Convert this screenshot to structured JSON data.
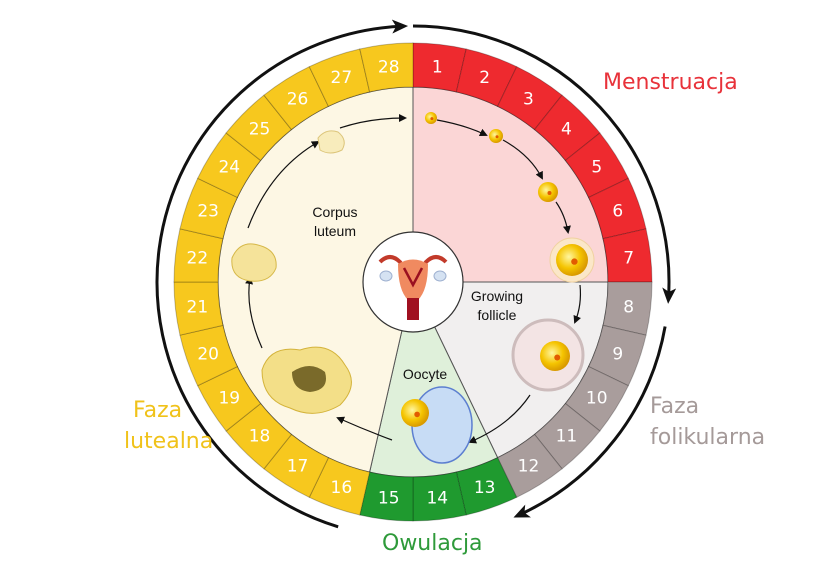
{
  "days": [
    "1",
    "2",
    "3",
    "4",
    "5",
    "6",
    "7",
    "8",
    "9",
    "10",
    "11",
    "12",
    "13",
    "14",
    "15",
    "16",
    "17",
    "18",
    "19",
    "20",
    "21",
    "22",
    "23",
    "24",
    "25",
    "26",
    "27",
    "28"
  ],
  "phases": [
    {
      "name": "Menstruacja",
      "from": 1,
      "to": 7,
      "ring_color": "#ee2a2f",
      "fill_color": "#fbd6d6",
      "label_color": "#e8323a"
    },
    {
      "name": "Faza folikularna",
      "from": 8,
      "to": 12,
      "ring_color": "#a99d9c",
      "fill_color": "#f1efef",
      "label_color": "#a59a99"
    },
    {
      "name": "Owulacja",
      "from": 13,
      "to": 15,
      "ring_color": "#1f9a2f",
      "fill_color": "#dff0da",
      "label_color": "#2e9a3a"
    },
    {
      "name": "Faza lutealna",
      "from": 16,
      "to": 28,
      "ring_color": "#f7c81e",
      "fill_color": "#fdf7e4",
      "label_color": "#f0c21a"
    }
  ],
  "labels": {
    "menstruacja": "Menstruacja",
    "faza_folikularna_1": "Faza",
    "faza_folikularna_2": "folikularna",
    "owulacja": "Owulacja",
    "faza_lutealna_1": "Faza",
    "faza_lutealna_2": "lutealna",
    "corpus_luteum_1": "Corpus",
    "corpus_luteum_2": "luteum",
    "growing_follicle_1": "Growing",
    "growing_follicle_2": "follicle",
    "oocyte": "Oocyte"
  },
  "icons": {
    "center": "uterus-icon"
  }
}
